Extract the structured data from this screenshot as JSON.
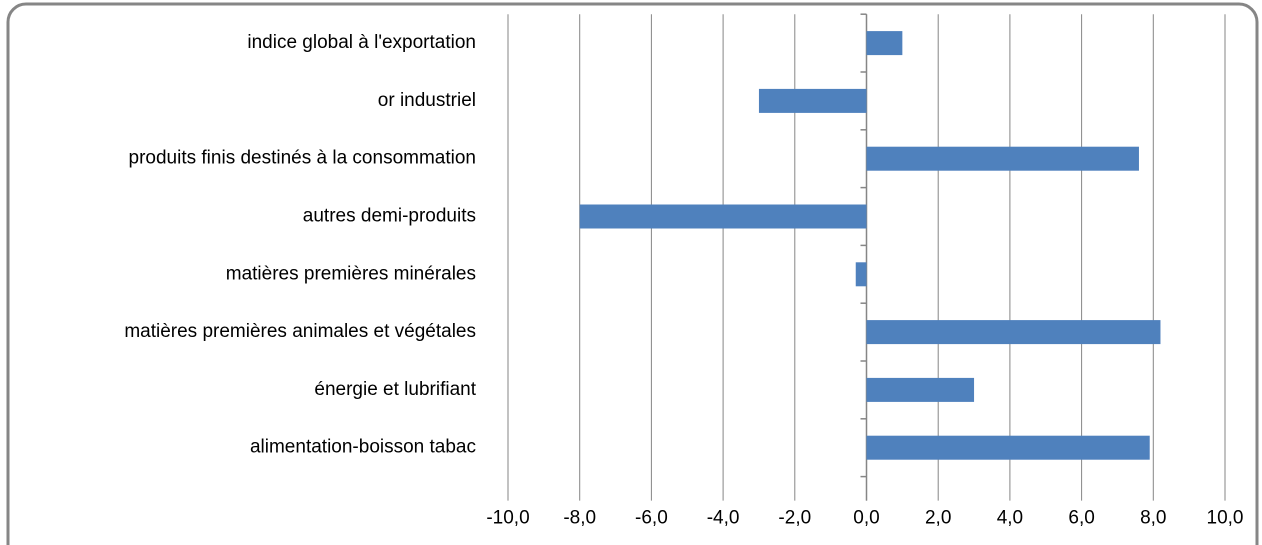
{
  "chart_data": {
    "type": "hbar",
    "categories": [
      "indice global à l'exportation",
      "or industriel",
      "produits finis destinés à la consommation",
      "autres demi-produits",
      "matières premières minérales",
      "matières premières animales et végétales",
      "énergie et lubrifiant",
      "alimentation-boisson tabac"
    ],
    "values": [
      1.0,
      -3.0,
      7.6,
      -8.0,
      -0.3,
      8.2,
      3.0,
      7.9
    ],
    "color": "#4f81bd",
    "xlim": [
      -10,
      10
    ],
    "xticks": [
      {
        "value": -10,
        "label": "-10,0"
      },
      {
        "value": -8,
        "label": "-8,0"
      },
      {
        "value": -6,
        "label": "-6,0"
      },
      {
        "value": -4,
        "label": "-4,0"
      },
      {
        "value": -2,
        "label": "-2,0"
      },
      {
        "value": 0,
        "label": "0,0"
      },
      {
        "value": 2,
        "label": "2,0"
      },
      {
        "value": 4,
        "label": "4,0"
      },
      {
        "value": 6,
        "label": "6,0"
      },
      {
        "value": 8,
        "label": "8,0"
      },
      {
        "value": 10,
        "label": "10,0"
      }
    ],
    "grid": true
  }
}
